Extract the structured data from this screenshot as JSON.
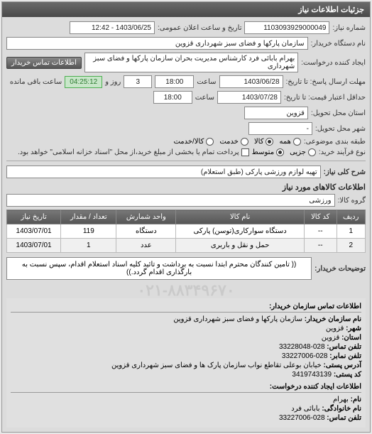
{
  "panel": {
    "title": "جزئیات اطلاعات نیاز"
  },
  "header": {
    "need_no_label": "شماره نیاز:",
    "need_no": "1103093929000049",
    "announce_label": "تاریخ و ساعت اعلان عمومی:",
    "announce": "1403/06/25 - 12:42",
    "org_label": "نام دستگاه خریدار:",
    "org": "سازمان پارکها و فضای سبز شهرداری قزوین",
    "requester_label": "ایجاد کننده درخواست:",
    "requester": "بهرام بابائی فرد کارشناس مدیریت بحران سازمان پارکها و فضای سبز شهرداری",
    "contact_btn": "اطلاعات تماس خریدار",
    "deadline_resp_label": "مهلت ارسال پاسخ: تا تاریخ:",
    "deadline_resp_date": "1403/06/28",
    "deadline_resp_time_label": "ساعت",
    "deadline_resp_time": "18:00",
    "days_label": "روز و",
    "days": "3",
    "countdown": "04:25:12",
    "remaining": "ساعت باقی مانده",
    "valid_until_label": "حداقل اعتبار قیمت: تا تاریخ:",
    "valid_until_date": "1403/07/28",
    "valid_until_time": "18:00",
    "province_label": "استان محل تحویل:",
    "province": "قزوین",
    "city_label": "شهر محل تحویل:",
    "city": "-",
    "class_label": "طبقه بندی موضوعی:",
    "class_all": "همه",
    "class_goods": "کالا",
    "class_service": "خدمت",
    "class_both": "کالا/خدمت",
    "purchase_label": "نوع فرآیند خرید:",
    "p_small": "جزیی",
    "p_medium": "متوسط",
    "note": "پرداخت تمام یا بخشی از مبلغ خرید،از محل \"اسناد خزانه اسلامی\" خواهد بود.",
    "desc_label": "شرح کلی نیاز:",
    "desc": "تهیه لوازم ورزشی پارکی (طبق استعلام)"
  },
  "goods": {
    "title": "اطلاعات کالاهای مورد نیاز",
    "group_label": "گروه کالا:",
    "group": "ورزشی",
    "columns": [
      "ردیف",
      "کد کالا",
      "نام کالا",
      "واحد شمارش",
      "تعداد / مقدار",
      "تاریخ نیاز"
    ],
    "rows": [
      [
        "1",
        "--",
        "دستگاه سوارکاری(توسن) پارکی",
        "دستگاه",
        "119",
        "1403/07/01"
      ],
      [
        "2",
        "--",
        "حمل و نقل و باربری",
        "عدد",
        "1",
        "1403/07/01"
      ]
    ]
  },
  "buyer_note": {
    "label": "توضیحات خریدار:",
    "text": "(( تامین کنندگان محترم ابتدا نسبت به برداشت و تائید کلیه اسناد استعلام اقدام، سپس نسبت به بارگذاری اقدام گردد.))"
  },
  "watermark": "۰۲۱-۸۸۳۴۹۶۷۰",
  "contact": {
    "title": "اطلاعات تماس سازمان خریدار:",
    "items": [
      {
        "k": "نام سازمان خریدار:",
        "v": "سازمان پارکها و فضای سبز شهرداری قزوین"
      },
      {
        "k": "شهر:",
        "v": "قزوین"
      },
      {
        "k": "استان:",
        "v": "قزوین"
      },
      {
        "k": "تلفن تماس:",
        "v": "028-33228048"
      },
      {
        "k": "تلفن نمابر:",
        "v": "028-33227006"
      },
      {
        "k": "آدرس پستی:",
        "v": "خیابان بوعلی تقاطع نواب سازمان پارک ها و فضای سبز شهرداری قزوین"
      },
      {
        "k": "کد پستی:",
        "v": "3419743139"
      }
    ],
    "creator_title": "اطلاعات ایجاد کننده درخواست:",
    "creator": [
      {
        "k": "نام:",
        "v": "بهرام"
      },
      {
        "k": "نام خانوادگی:",
        "v": "بابائی فرد"
      },
      {
        "k": "تلفن تماس:",
        "v": "028-33227006"
      }
    ]
  },
  "colors": {
    "header_bg": "#5a5a5a",
    "panel_bg": "#dcdcdc",
    "th_bg": "#666666",
    "countdown_bg": "#c8e6c9"
  }
}
